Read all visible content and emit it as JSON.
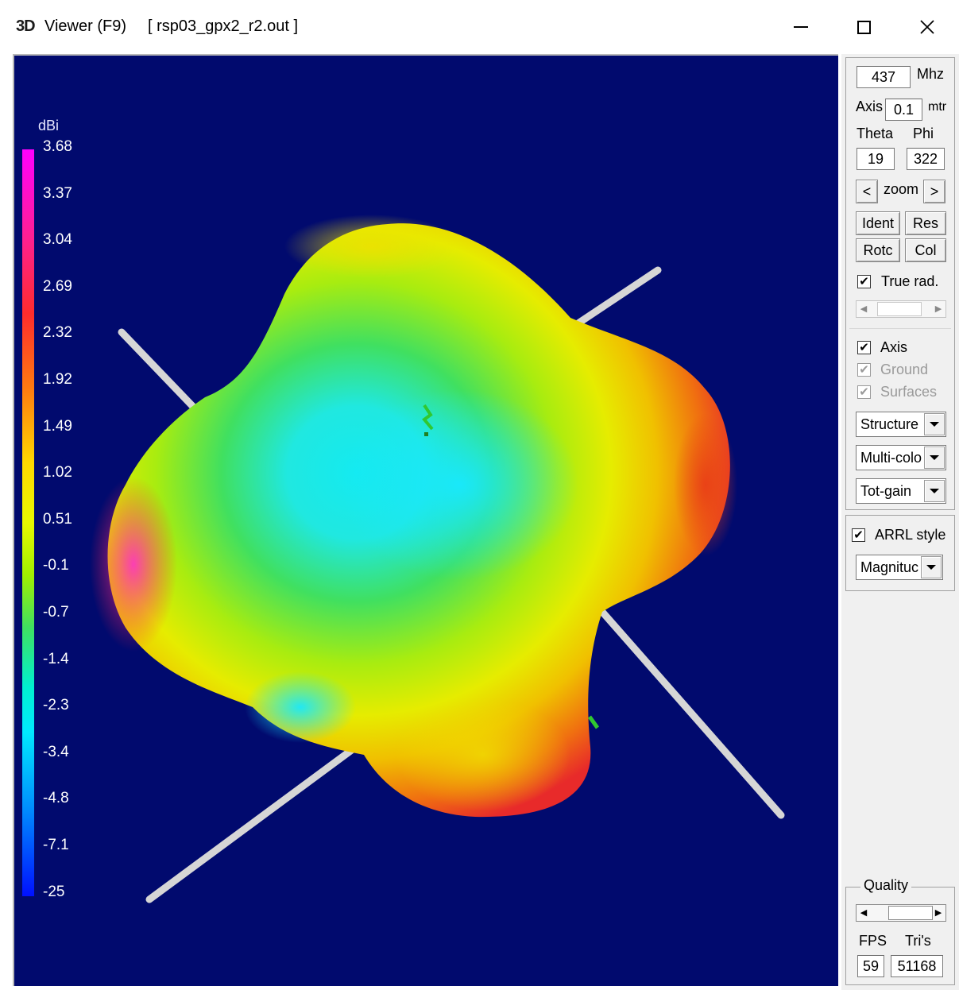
{
  "window": {
    "logo_text": "3D",
    "title": "Viewer (F9)",
    "file": "[ rsp03_gpx2_r2.out ]",
    "controls": [
      "minimize-icon",
      "maximize-icon",
      "close-icon"
    ]
  },
  "scale": {
    "unit": "dBi",
    "labels": [
      "3.68",
      "3.37",
      "3.04",
      "2.69",
      "2.32",
      "1.92",
      "1.49",
      "1.02",
      "0.51",
      "-0.1",
      "-0.7",
      "-1.4",
      "-2.3",
      "-3.4",
      "-4.8",
      "-7.1",
      "-25"
    ]
  },
  "viewport": {
    "background": "#010a6e",
    "axis_color": "#d8d8d8"
  },
  "panel": {
    "freq_value": "437",
    "freq_unit": "Mhz",
    "axis_label": "Axis",
    "axis_value": "0.1",
    "axis_unit": "mtr",
    "theta_label": "Theta",
    "phi_label": "Phi",
    "theta_value": "19",
    "phi_value": "322",
    "zoom_label": "zoom",
    "zoom_left": "<",
    "zoom_right": ">",
    "ident_label": "Ident",
    "res_label": "Res",
    "rotc_label": "Rotc",
    "col_label": "Col",
    "true_rad_label": "True rad.",
    "true_rad_checked": true,
    "axis_check_label": "Axis",
    "ground_label": "Ground",
    "surfaces_label": "Surfaces",
    "combo_structure": "Structure",
    "combo_color": "Multi-colo",
    "combo_gain": "Tot-gain",
    "arrl_label": "ARRL style",
    "combo_magnitude": "Magnituc",
    "quality_label": "Quality",
    "fps_label": "FPS",
    "tris_label": "Tri's",
    "fps_value": "59",
    "tris_value": "51168",
    "check_mark": "✔"
  }
}
